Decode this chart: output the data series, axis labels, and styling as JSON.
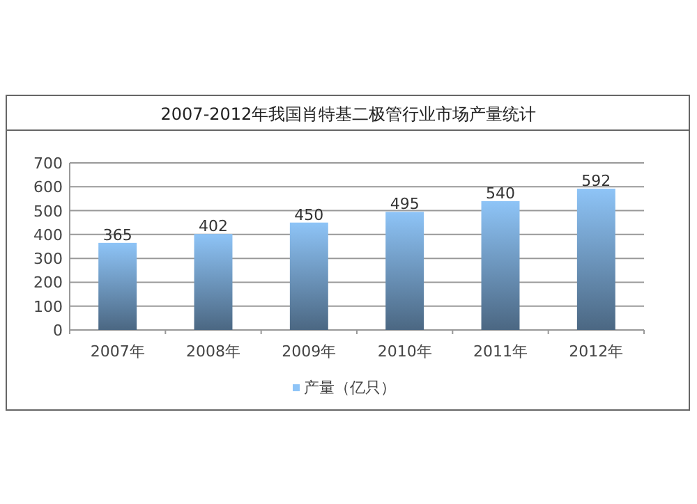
{
  "chart_data": {
    "type": "bar",
    "title": "2007-2012年我国肖特基二极管行业市场产量统计",
    "categories": [
      "2007年",
      "2008年",
      "2009年",
      "2010年",
      "2011年",
      "2012年"
    ],
    "series": [
      {
        "name": "产量（亿只）",
        "color": "#8ec4f7",
        "values": [
          365,
          402,
          450,
          495,
          540,
          592
        ]
      }
    ],
    "ylim": [
      0,
      700
    ],
    "yticks": [
      0,
      100,
      200,
      300,
      400,
      500,
      600,
      700
    ],
    "grid": "y",
    "legend": "bottom",
    "data_labels": true
  }
}
